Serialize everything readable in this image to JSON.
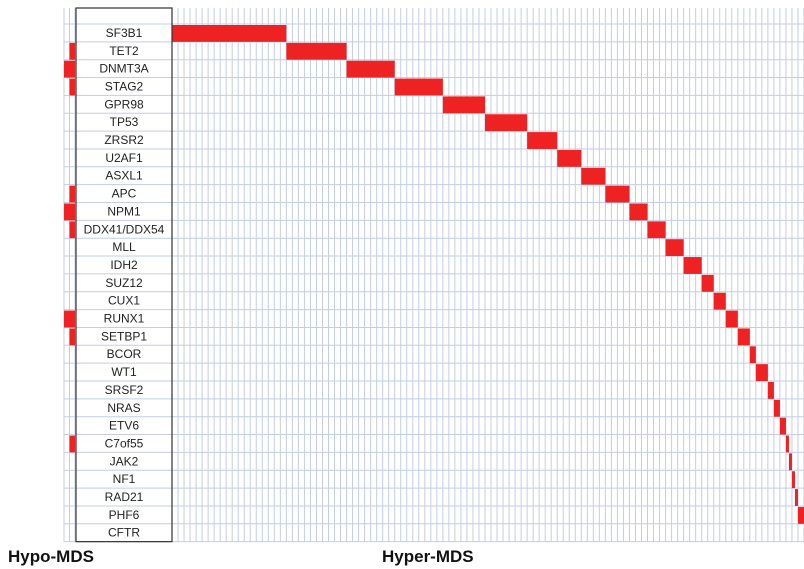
{
  "chart_data": {
    "type": "heatmap",
    "genes": [
      "SF3B1",
      "TET2",
      "DNMT3A",
      "STAG2",
      "GPR98",
      "TP53",
      "ZRSR2",
      "U2AF1",
      "ASXL1",
      "APC",
      "NPM1",
      "DDX41/DDX54",
      "MLL",
      "IDH2",
      "SUZ12",
      "CUX1",
      "RUNX1",
      "SETBP1",
      "BCOR",
      "WT1",
      "SRSF2",
      "NRAS",
      "ETV6",
      "C7of55",
      "JAK2",
      "NF1",
      "RAD21",
      "PHF6",
      "CFTR"
    ],
    "groups": [
      {
        "name": "Hypo-MDS",
        "columns": 2
      },
      {
        "name": "Hyper-MDS",
        "columns": 105
      }
    ],
    "hypo_mutations": [
      {
        "gene": "TET2",
        "cols": [
          1
        ]
      },
      {
        "gene": "DNMT3A",
        "cols": [
          0,
          1
        ]
      },
      {
        "gene": "STAG2",
        "cols": [
          1
        ]
      },
      {
        "gene": "APC",
        "cols": [
          1
        ]
      },
      {
        "gene": "NPM1",
        "cols": [
          0,
          1
        ]
      },
      {
        "gene": "DDX41/DDX54",
        "cols": [
          1
        ]
      },
      {
        "gene": "RUNX1",
        "cols": [
          0,
          1
        ]
      },
      {
        "gene": "SETBP1",
        "cols": [
          1
        ]
      },
      {
        "gene": "C7of55",
        "cols": [
          1
        ]
      }
    ],
    "hyper_mutations": [
      {
        "gene": "SF3B1",
        "start": 0,
        "end": 19
      },
      {
        "gene": "TET2",
        "start": 19,
        "end": 29
      },
      {
        "gene": "DNMT3A",
        "start": 29,
        "end": 37
      },
      {
        "gene": "STAG2",
        "start": 37,
        "end": 45
      },
      {
        "gene": "GPR98",
        "start": 45,
        "end": 52
      },
      {
        "gene": "TP53",
        "start": 52,
        "end": 59
      },
      {
        "gene": "ZRSR2",
        "start": 59,
        "end": 64
      },
      {
        "gene": "U2AF1",
        "start": 64,
        "end": 68
      },
      {
        "gene": "ASXL1",
        "start": 68,
        "end": 72
      },
      {
        "gene": "APC",
        "start": 72,
        "end": 76
      },
      {
        "gene": "NPM1",
        "start": 76,
        "end": 79
      },
      {
        "gene": "DDX41/DDX54",
        "start": 79,
        "end": 82
      },
      {
        "gene": "MLL",
        "start": 82,
        "end": 85
      },
      {
        "gene": "IDH2",
        "start": 85,
        "end": 88
      },
      {
        "gene": "SUZ12",
        "start": 88,
        "end": 90
      },
      {
        "gene": "CUX1",
        "start": 90,
        "end": 92
      },
      {
        "gene": "RUNX1",
        "start": 92,
        "end": 94
      },
      {
        "gene": "SETBP1",
        "start": 94,
        "end": 96
      },
      {
        "gene": "BCOR",
        "start": 96,
        "end": 97
      },
      {
        "gene": "WT1",
        "start": 97,
        "end": 99
      },
      {
        "gene": "SRSF2",
        "start": 99,
        "end": 100
      },
      {
        "gene": "NRAS",
        "start": 100,
        "end": 101
      },
      {
        "gene": "ETV6",
        "start": 101,
        "end": 102
      },
      {
        "gene": "C7of55",
        "start": 102,
        "end": 102.5
      },
      {
        "gene": "JAK2",
        "start": 102.5,
        "end": 103
      },
      {
        "gene": "NF1",
        "start": 103,
        "end": 103.5
      },
      {
        "gene": "RAD21",
        "start": 103.5,
        "end": 104
      },
      {
        "gene": "PHF6",
        "start": 104,
        "end": 105
      }
    ],
    "colors": {
      "mutation": "#ee2222",
      "grid": "#c4cde4",
      "label_box_border": "#333333",
      "background": "#ffffff"
    }
  }
}
